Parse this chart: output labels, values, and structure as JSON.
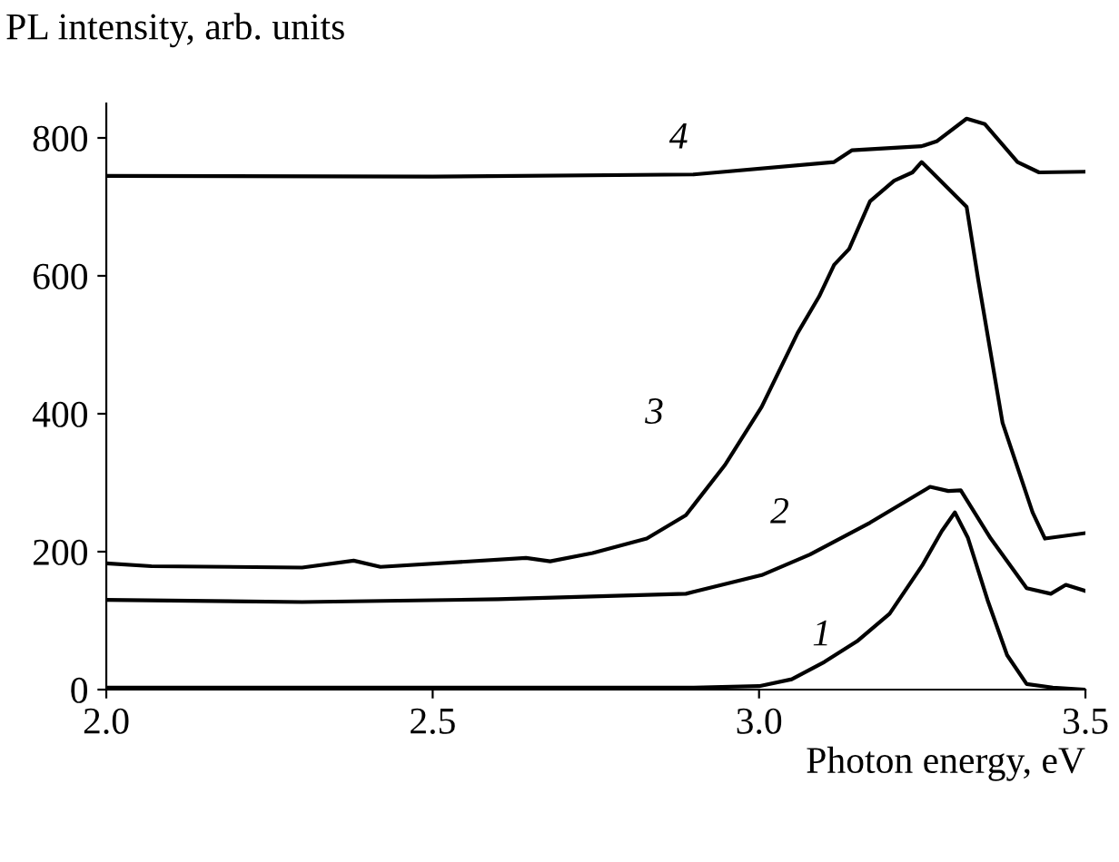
{
  "chart_data": {
    "type": "line",
    "xlabel": "Photon energy, eV",
    "ylabel": "PL intensity, arb. units",
    "xlim": [
      2.0,
      3.5
    ],
    "ylim": [
      0,
      850
    ],
    "xticks": [
      {
        "value": 2.0,
        "label": "2.0"
      },
      {
        "value": 2.5,
        "label": "2.5"
      },
      {
        "value": 3.0,
        "label": "3.0"
      },
      {
        "value": 3.5,
        "label": "3.5"
      }
    ],
    "yticks": [
      0,
      200,
      400,
      600,
      800
    ],
    "grid": false,
    "legend": false,
    "marker": "none",
    "line_style": "solid",
    "series": [
      {
        "name": "1",
        "color": "#000000",
        "x": [
          2.0,
          2.5,
          2.9,
          3.0,
          3.05,
          3.1,
          3.15,
          3.2,
          3.25,
          3.28,
          3.3,
          3.32,
          3.35,
          3.38,
          3.41,
          3.45,
          3.5
        ],
        "values": [
          3,
          3,
          3,
          5,
          15,
          40,
          70,
          110,
          180,
          230,
          257,
          220,
          130,
          50,
          8,
          3,
          0
        ]
      },
      {
        "name": "2",
        "color": "#000000",
        "x": [
          2.0,
          2.3,
          2.6,
          2.888,
          3.004,
          3.078,
          3.17,
          3.262,
          3.29,
          3.309,
          3.355,
          3.41,
          3.447,
          3.47,
          3.5
        ],
        "values": [
          130,
          127,
          131,
          139,
          166,
          196,
          242,
          294,
          288,
          289,
          219,
          147,
          139,
          152,
          143
        ]
      },
      {
        "name": "3",
        "color": "#000000",
        "x": [
          2.0,
          2.069,
          2.3,
          2.379,
          2.42,
          2.643,
          2.68,
          2.745,
          2.828,
          2.888,
          2.948,
          3.004,
          3.059,
          3.092,
          3.115,
          3.138,
          3.17,
          3.207,
          3.235,
          3.249,
          3.262,
          3.318,
          3.336,
          3.373,
          3.419,
          3.438,
          3.5
        ],
        "values": [
          183,
          179,
          177,
          187,
          178,
          191,
          186,
          198,
          219,
          253,
          326,
          410,
          517,
          570,
          616,
          639,
          708,
          738,
          750,
          765,
          753,
          700,
          593,
          387,
          257,
          219,
          227
        ]
      },
      {
        "name": "4",
        "color": "#000000",
        "x": [
          2.0,
          2.5,
          2.9,
          3.115,
          3.142,
          3.249,
          3.272,
          3.318,
          3.346,
          3.396,
          3.429,
          3.5
        ],
        "values": [
          745,
          744,
          747,
          765,
          782,
          788,
          795,
          828,
          820,
          765,
          750,
          751
        ]
      }
    ]
  }
}
